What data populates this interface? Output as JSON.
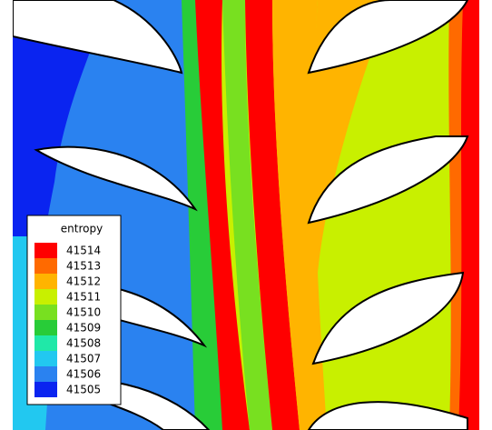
{
  "chart_data": {
    "type": "contour",
    "legend_title": "entropy",
    "levels": [
      41514,
      41513,
      41512,
      41511,
      41510,
      41509,
      41508,
      41507,
      41506,
      41505
    ],
    "colors": [
      "#ff0000",
      "#ff6a00",
      "#ffb400",
      "#c8f000",
      "#78e020",
      "#28cc38",
      "#20e8a8",
      "#22c8f0",
      "#2a82f0",
      "#0a24f0"
    ]
  }
}
